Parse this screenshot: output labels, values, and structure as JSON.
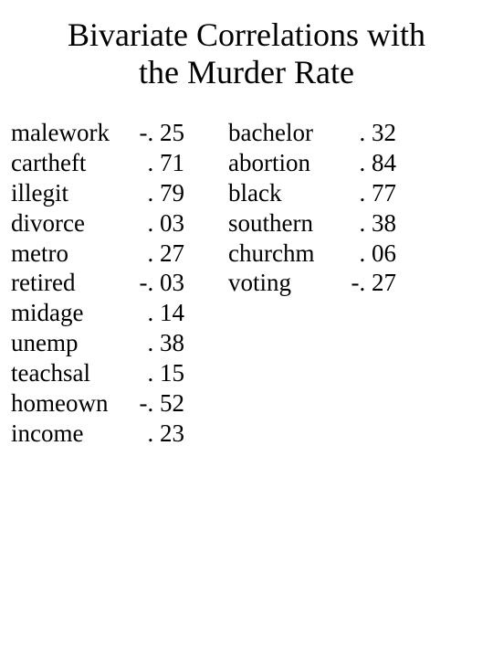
{
  "title_line1": "Bivariate Correlations with",
  "title_line2": "the Murder Rate",
  "left": [
    {
      "label": "malework",
      "value": "-. 25"
    },
    {
      "label": "cartheft",
      "value": ". 71"
    },
    {
      "label": "illegit",
      "value": ". 79"
    },
    {
      "label": "divorce",
      "value": ". 03"
    },
    {
      "label": "metro",
      "value": ". 27"
    },
    {
      "label": "retired",
      "value": "-. 03"
    },
    {
      "label": "midage",
      "value": ". 14"
    },
    {
      "label": "unemp",
      "value": ". 38"
    },
    {
      "label": "teachsal",
      "value": ". 15"
    },
    {
      "label": "homeown",
      "value": "-. 52"
    },
    {
      "label": "income",
      "value": ". 23"
    }
  ],
  "right": [
    {
      "label": "bachelor",
      "value": ". 32"
    },
    {
      "label": "abortion",
      "value": ". 84"
    },
    {
      "label": "black",
      "value": ". 77"
    },
    {
      "label": "southern",
      "value": ". 38"
    },
    {
      "label": "churchm",
      "value": ". 06"
    },
    {
      "label": "voting",
      "value": "-. 27"
    }
  ]
}
